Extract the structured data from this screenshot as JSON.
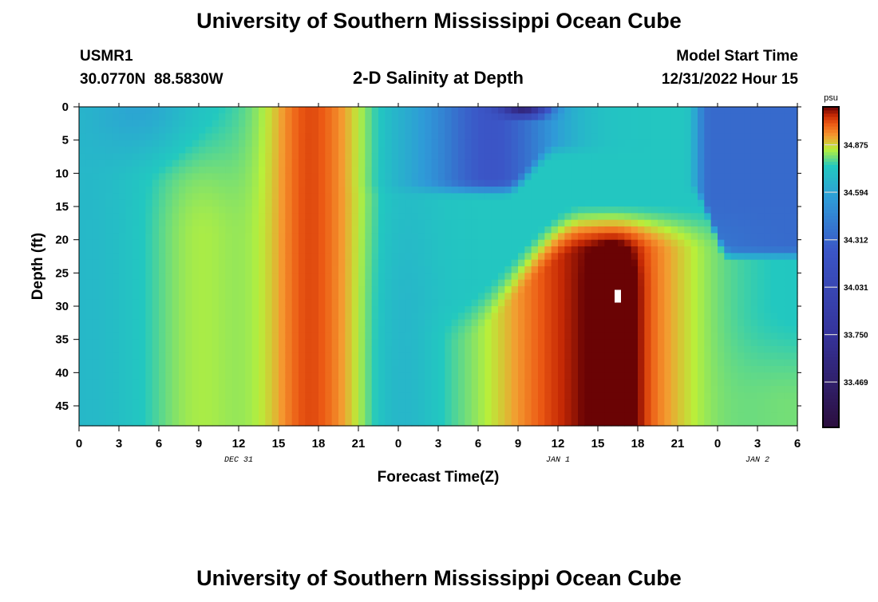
{
  "page": {
    "top_title": "University of Southern Mississippi Ocean Cube",
    "bottom_title": "University of Southern Mississippi Ocean Cube"
  },
  "station": {
    "id": "USMR1",
    "coords": "30.0770N  88.5830W"
  },
  "model": {
    "start_label": "Model Start Time",
    "start_value": "12/31/2022 Hour 15"
  },
  "chart_data": {
    "type": "heatmap",
    "title": "2-D Salinity at Depth",
    "xlabel": "Forecast Time(Z)",
    "ylabel": "Depth (ft)",
    "x_range": [
      0,
      54
    ],
    "y_range": [
      0,
      48
    ],
    "x_ticks": [
      "0",
      "3",
      "6",
      "9",
      "12",
      "15",
      "18",
      "21",
      "0",
      "3",
      "6",
      "9",
      "12",
      "15",
      "18",
      "21",
      "0",
      "3",
      "6"
    ],
    "date_labels": [
      {
        "label": "DEC 31",
        "x": 12
      },
      {
        "label": "JAN 1",
        "x": 36
      },
      {
        "label": "JAN 2",
        "x": 51
      }
    ],
    "y_ticks": [
      0,
      5,
      10,
      15,
      20,
      25,
      30,
      35,
      40,
      45
    ],
    "colorbar": {
      "unit": "psu",
      "range": [
        33.2,
        35.1
      ],
      "ticks": [
        33.469,
        33.75,
        34.031,
        34.312,
        34.594,
        34.875
      ],
      "tick_labels": [
        "33.469",
        "33.750",
        "34.031",
        "34.312",
        "34.594",
        "34.875"
      ]
    },
    "missing_marker": {
      "x": 40.5,
      "y": 28.5
    },
    "field_description": "Salinity (psu) over forecast hours 0-54 and depth 0-48 ft; low-salinity plume (~33.2-34.6) near surface around hours 27-35 and 45-54; high salinity (~34.9-35.1) core at depth around hours 37-43.",
    "colors": {
      "low": "#2c0e3e",
      "mid_low": "#3b56c7",
      "mid": "#22c8c0",
      "mid_high": "#b8f03a",
      "high": "#f49a30",
      "very_high": "#c62a05",
      "max": "#6a0304"
    }
  }
}
